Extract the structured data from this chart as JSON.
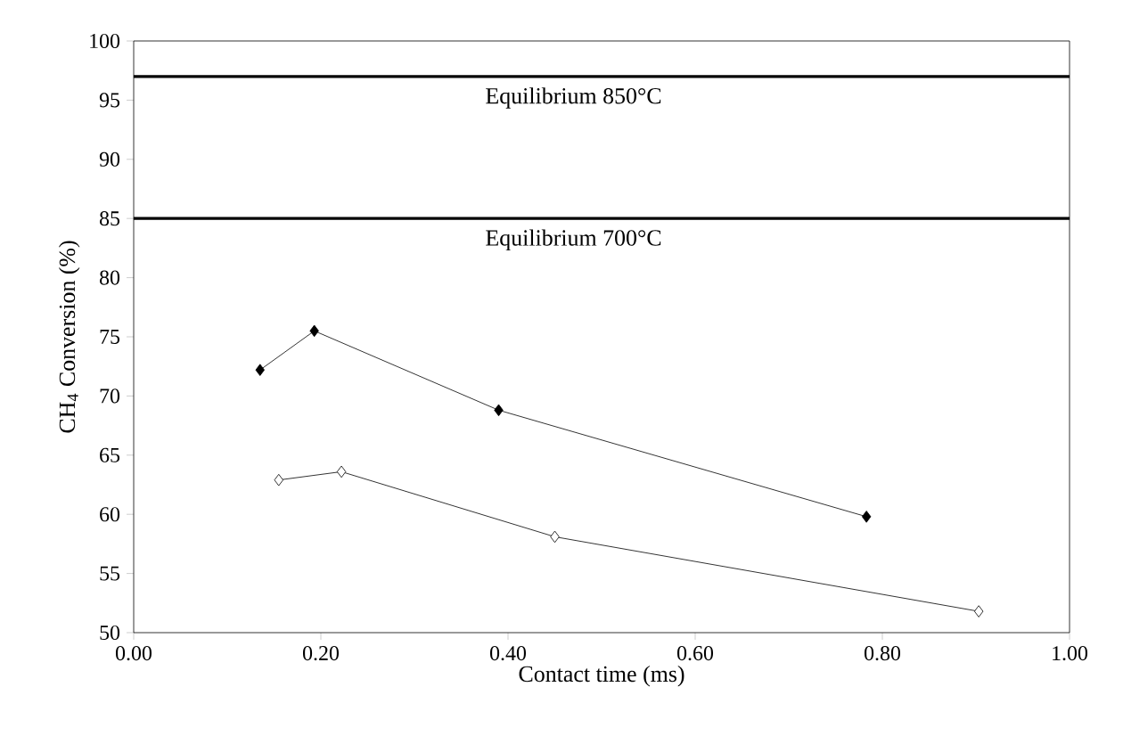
{
  "chart_data": {
    "type": "line",
    "xlabel": "Contact time (ms)",
    "ylabel": "CH$_{4}$ Conversion (%)",
    "xlim": [
      0,
      1
    ],
    "ylim": [
      50,
      100
    ],
    "xticks": [
      {
        "value": 0,
        "label": "0.00"
      },
      {
        "value": 0.2,
        "label": "0.20"
      },
      {
        "value": 0.4,
        "label": "0.40"
      },
      {
        "value": 0.6,
        "label": "0.60"
      },
      {
        "value": 0.8,
        "label": "0.80"
      },
      {
        "value": 1,
        "label": "1.00"
      }
    ],
    "yticks": [
      50,
      55,
      60,
      65,
      70,
      75,
      80,
      85,
      90,
      95,
      100
    ],
    "marker": "diamond",
    "line_style": "solid",
    "series": [
      {
        "color": "#000000",
        "x": [
          0.135,
          0.193,
          0.39,
          0.783
        ],
        "values": [
          72.2,
          75.5,
          68.8,
          59.8
        ]
      },
      {
        "color": "#000000",
        "x": [
          0.155,
          0.222,
          0.45,
          0.903
        ],
        "values": [
          62.9,
          63.6,
          58.1,
          51.8
        ]
      }
    ],
    "ref_lines": [
      {
        "axis": "y",
        "value": 97,
        "label": "Equilibrium 850°C",
        "color": "#000000"
      },
      {
        "axis": "y",
        "value": 85,
        "label": "Equilibrium 700°C",
        "color": "#000000"
      }
    ]
  }
}
